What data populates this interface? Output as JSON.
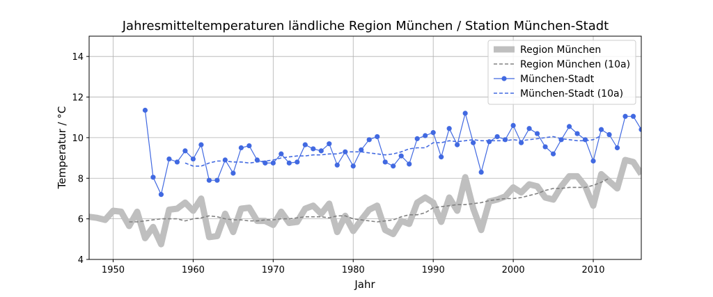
{
  "chart_data": {
    "type": "line",
    "title": "Jahresmitteltemperaturen ländliche Region München / Station München-Stadt",
    "xlabel": "Jahr",
    "ylabel": "Temperatur / °C",
    "xlim": [
      1947,
      2016
    ],
    "ylim": [
      4,
      15
    ],
    "xticks": [
      1950,
      1960,
      1970,
      1980,
      1990,
      2000,
      2010
    ],
    "yticks": [
      4,
      6,
      8,
      10,
      12,
      14
    ],
    "grid": true,
    "legend_position": "top-right",
    "series": [
      {
        "name": "Region München",
        "style": "thick-solid",
        "color": "#bfbfbf",
        "x": [
          1947,
          1948,
          1949,
          1950,
          1951,
          1952,
          1953,
          1954,
          1955,
          1956,
          1957,
          1958,
          1959,
          1960,
          1961,
          1962,
          1963,
          1964,
          1965,
          1966,
          1967,
          1968,
          1969,
          1970,
          1971,
          1972,
          1973,
          1974,
          1975,
          1976,
          1977,
          1978,
          1979,
          1980,
          1981,
          1982,
          1983,
          1984,
          1985,
          1986,
          1987,
          1988,
          1989,
          1990,
          1991,
          1992,
          1993,
          1994,
          1995,
          1996,
          1997,
          1998,
          1999,
          2000,
          2001,
          2002,
          2003,
          2004,
          2005,
          2006,
          2007,
          2008,
          2009,
          2010,
          2011,
          2012,
          2013,
          2014,
          2015,
          2016
        ],
        "y": [
          6.1,
          6.05,
          5.95,
          6.4,
          6.35,
          5.65,
          6.35,
          5.05,
          5.6,
          4.75,
          6.45,
          6.5,
          6.8,
          6.4,
          7.0,
          5.1,
          5.15,
          6.25,
          5.35,
          6.5,
          6.55,
          5.9,
          5.9,
          5.7,
          6.35,
          5.8,
          5.85,
          6.5,
          6.65,
          6.25,
          6.75,
          5.35,
          6.15,
          5.4,
          5.95,
          6.45,
          6.65,
          5.45,
          5.25,
          5.9,
          5.75,
          6.8,
          7.05,
          6.8,
          5.85,
          7.05,
          6.4,
          8.05,
          6.5,
          5.45,
          6.85,
          6.95,
          7.1,
          7.55,
          7.3,
          7.7,
          7.6,
          7.05,
          6.95,
          7.6,
          8.1,
          8.1,
          7.6,
          6.65,
          8.2,
          7.85,
          7.5,
          8.9,
          8.8,
          8.2
        ]
      },
      {
        "name": "Region München (10a)",
        "style": "dashed",
        "color": "#808080",
        "x": [
          1952,
          1953,
          1954,
          1955,
          1956,
          1957,
          1958,
          1959,
          1960,
          1961,
          1962,
          1963,
          1964,
          1965,
          1966,
          1967,
          1968,
          1969,
          1970,
          1971,
          1972,
          1973,
          1974,
          1975,
          1976,
          1977,
          1978,
          1979,
          1980,
          1981,
          1982,
          1983,
          1984,
          1985,
          1986,
          1987,
          1988,
          1989,
          1990,
          1991,
          1992,
          1993,
          1994,
          1995,
          1996,
          1997,
          1998,
          1999,
          2000,
          2001,
          2002,
          2003,
          2004,
          2005,
          2006,
          2007,
          2008,
          2009,
          2010,
          2011,
          2012
        ],
        "y": [
          5.85,
          5.85,
          5.9,
          5.95,
          6.0,
          6.0,
          6.0,
          5.9,
          6.0,
          6.05,
          6.15,
          6.1,
          6.0,
          5.95,
          5.95,
          5.9,
          5.9,
          5.95,
          5.95,
          6.0,
          6.0,
          6.05,
          6.1,
          6.1,
          6.1,
          6.05,
          6.15,
          6.15,
          6.0,
          5.95,
          5.9,
          5.85,
          5.9,
          5.95,
          6.1,
          6.2,
          6.2,
          6.3,
          6.55,
          6.6,
          6.65,
          6.7,
          6.7,
          6.75,
          6.8,
          6.9,
          6.95,
          7.0,
          7.0,
          7.05,
          7.15,
          7.25,
          7.4,
          7.5,
          7.5,
          7.55,
          7.55,
          7.55,
          7.65,
          7.8,
          8.0
        ]
      },
      {
        "name": "München-Stadt",
        "style": "line-markers",
        "color": "#4169e1",
        "x": [
          1954,
          1955,
          1956,
          1957,
          1958,
          1959,
          1960,
          1961,
          1962,
          1963,
          1964,
          1965,
          1966,
          1967,
          1968,
          1969,
          1970,
          1971,
          1972,
          1973,
          1974,
          1975,
          1976,
          1977,
          1978,
          1979,
          1980,
          1981,
          1982,
          1983,
          1984,
          1985,
          1986,
          1987,
          1988,
          1989,
          1990,
          1991,
          1992,
          1993,
          1994,
          1995,
          1996,
          1997,
          1998,
          1999,
          2000,
          2001,
          2002,
          2003,
          2004,
          2005,
          2006,
          2007,
          2008,
          2009,
          2010,
          2011,
          2012,
          2013,
          2014,
          2015,
          2016
        ],
        "y": [
          11.35,
          8.05,
          7.2,
          8.95,
          8.8,
          9.35,
          8.95,
          9.65,
          7.9,
          7.9,
          8.9,
          8.25,
          9.5,
          9.6,
          8.9,
          8.75,
          8.75,
          9.2,
          8.75,
          8.8,
          9.65,
          9.45,
          9.35,
          9.7,
          8.65,
          9.3,
          8.6,
          9.4,
          9.9,
          10.05,
          8.8,
          8.6,
          9.1,
          8.7,
          9.95,
          10.1,
          10.25,
          9.05,
          10.45,
          9.65,
          11.2,
          9.75,
          8.3,
          9.8,
          10.05,
          9.9,
          10.6,
          9.75,
          10.45,
          10.2,
          9.55,
          9.2,
          9.9,
          10.55,
          10.2,
          9.9,
          8.85,
          10.4,
          10.15,
          9.5,
          11.05,
          11.05,
          10.4
        ]
      },
      {
        "name": "München-Stadt (10a)",
        "style": "dashed",
        "color": "#4169e1",
        "x": [
          1959,
          1960,
          1961,
          1962,
          1963,
          1964,
          1965,
          1966,
          1967,
          1968,
          1969,
          1970,
          1971,
          1972,
          1973,
          1974,
          1975,
          1976,
          1977,
          1978,
          1979,
          1980,
          1981,
          1982,
          1983,
          1984,
          1985,
          1986,
          1987,
          1988,
          1989,
          1990,
          1991,
          1992,
          1993,
          1994,
          1995,
          1996,
          1997,
          1998,
          1999,
          2000,
          2001,
          2002,
          2003,
          2004,
          2005,
          2006,
          2007,
          2008,
          2009,
          2010,
          2011
        ],
        "y": [
          8.75,
          8.6,
          8.6,
          8.75,
          8.85,
          8.85,
          8.8,
          8.8,
          8.75,
          8.8,
          8.85,
          8.9,
          9.0,
          9.05,
          9.1,
          9.1,
          9.15,
          9.15,
          9.2,
          9.2,
          9.3,
          9.3,
          9.3,
          9.25,
          9.2,
          9.15,
          9.2,
          9.3,
          9.45,
          9.5,
          9.5,
          9.75,
          9.75,
          9.85,
          9.8,
          9.85,
          9.9,
          9.85,
          9.85,
          9.85,
          9.85,
          9.9,
          9.85,
          9.9,
          9.95,
          10.0,
          10.05,
          9.95,
          9.9,
          9.85,
          9.85,
          9.9,
          10.1
        ]
      }
    ]
  }
}
